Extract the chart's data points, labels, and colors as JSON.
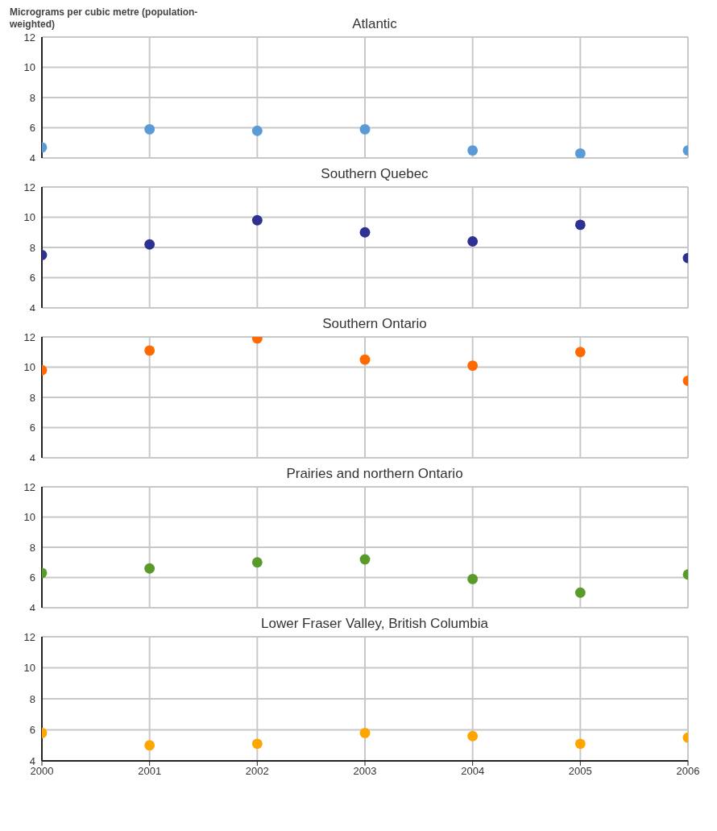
{
  "chart_data": [
    {
      "type": "scatter",
      "title": "Atlantic",
      "ylabel": "Micrograms per cubic metre (population-weighted)",
      "x": [
        2000,
        2001,
        2002,
        2003,
        2004,
        2005,
        2006
      ],
      "xlim": [
        2000,
        2006
      ],
      "xticks": [
        2000,
        2001,
        2002,
        2003,
        2004,
        2005,
        2006
      ],
      "ylim": [
        4,
        12
      ],
      "yticks": [
        4,
        6,
        8,
        10,
        12
      ],
      "grid": true,
      "marker": "circle",
      "tick_labels": "y",
      "legend": false,
      "series": [
        {
          "color": "#5b9bd5",
          "values": [
            4.7,
            5.9,
            5.8,
            5.9,
            4.5,
            4.3,
            4.5
          ]
        }
      ]
    },
    {
      "type": "scatter",
      "title": "Southern Quebec",
      "x": [
        2000,
        2001,
        2002,
        2003,
        2004,
        2005,
        2006
      ],
      "xlim": [
        2000,
        2006
      ],
      "xticks": [
        2000,
        2001,
        2002,
        2003,
        2004,
        2005,
        2006
      ],
      "ylim": [
        4,
        12
      ],
      "yticks": [
        4,
        6,
        8,
        10,
        12
      ],
      "grid": true,
      "marker": "circle",
      "tick_labels": "y",
      "legend": false,
      "series": [
        {
          "color": "#2e3192",
          "values": [
            7.5,
            8.2,
            9.8,
            9.0,
            8.4,
            9.5,
            7.3
          ]
        }
      ]
    },
    {
      "type": "scatter",
      "title": "Southern Ontario",
      "x": [
        2000,
        2001,
        2002,
        2003,
        2004,
        2005,
        2006
      ],
      "xlim": [
        2000,
        2006
      ],
      "xticks": [
        2000,
        2001,
        2002,
        2003,
        2004,
        2005,
        2006
      ],
      "ylim": [
        4,
        12
      ],
      "yticks": [
        4,
        6,
        8,
        10,
        12
      ],
      "grid": true,
      "marker": "circle",
      "tick_labels": "y",
      "legend": false,
      "series": [
        {
          "color": "#ff6a00",
          "values": [
            9.8,
            11.1,
            11.9,
            10.5,
            10.1,
            11.0,
            9.1
          ]
        }
      ]
    },
    {
      "type": "scatter",
      "title": "Prairies and northern Ontario",
      "x": [
        2000,
        2001,
        2002,
        2003,
        2004,
        2005,
        2006
      ],
      "xlim": [
        2000,
        2006
      ],
      "xticks": [
        2000,
        2001,
        2002,
        2003,
        2004,
        2005,
        2006
      ],
      "ylim": [
        4,
        12
      ],
      "yticks": [
        4,
        6,
        8,
        10,
        12
      ],
      "grid": true,
      "marker": "circle",
      "tick_labels": "y",
      "legend": false,
      "series": [
        {
          "color": "#5a9a2a",
          "values": [
            6.3,
            6.6,
            7.0,
            7.2,
            5.9,
            5.0,
            6.2
          ]
        }
      ]
    },
    {
      "type": "scatter",
      "title": "Lower Fraser Valley, British Columbia",
      "x": [
        2000,
        2001,
        2002,
        2003,
        2004,
        2005,
        2006
      ],
      "xlim": [
        2000,
        2006
      ],
      "xticks": [
        2000,
        2001,
        2002,
        2003,
        2004,
        2005,
        2006
      ],
      "ylim": [
        4,
        12
      ],
      "yticks": [
        4,
        6,
        8,
        10,
        12
      ],
      "grid": true,
      "marker": "circle",
      "legend": false,
      "series": [
        {
          "color": "#ffa500",
          "values": [
            5.8,
            5.0,
            5.1,
            5.8,
            5.6,
            5.1,
            5.5
          ]
        }
      ]
    }
  ]
}
